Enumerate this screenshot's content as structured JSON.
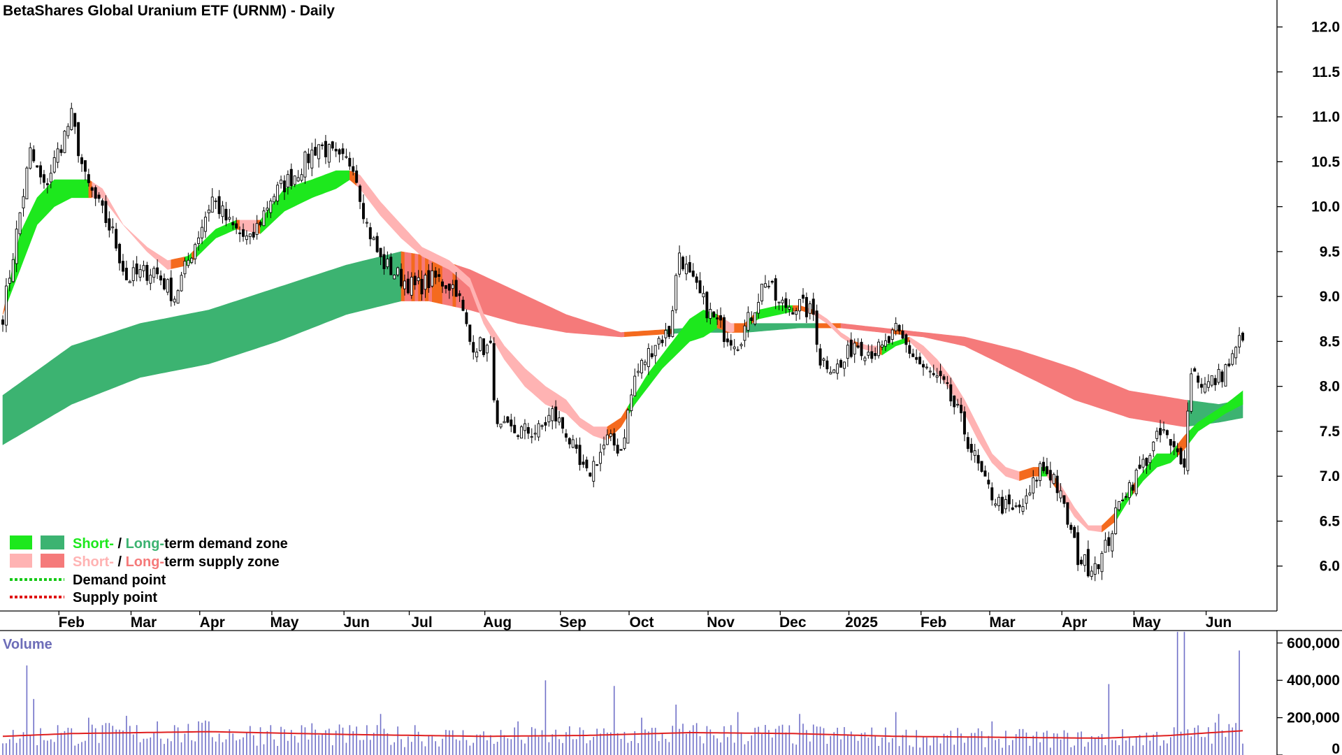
{
  "colors": {
    "short_demand": "#1de81d",
    "long_demand": "#3cb371",
    "short_supply": "#ffb3b3",
    "long_supply": "#f57a7a",
    "orange_zone": "#f46a1e",
    "demand_point": "#16c916",
    "supply_point": "#e01010",
    "volume_bar": "#7070c8",
    "volume_ma": "#e02020",
    "candle_up": "#ffffff",
    "candle_down": "#000000"
  },
  "chart_data": [
    {
      "type": "candlestick",
      "title": "BetaShares Global Uranium ETF (URNM) - Daily",
      "ylim": [
        5.5,
        12.3
      ],
      "y_ticks": [
        "6.0",
        "6.5",
        "7.0",
        "7.5",
        "8.0",
        "8.5",
        "9.0",
        "9.5",
        "10.0",
        "10.5",
        "11.0",
        "11.5",
        "12.0"
      ],
      "x_ticks": [
        "Feb",
        "Mar",
        "Apr",
        "May",
        "Jun",
        "Jul",
        "Aug",
        "Sep",
        "Oct",
        "Nov",
        "Dec",
        "2025",
        "Feb",
        "Mar",
        "Apr",
        "May",
        "Jun"
      ],
      "x_tick_index": [
        20,
        41,
        61,
        82,
        103,
        122,
        144,
        166,
        186,
        209,
        230,
        250,
        271,
        291,
        312,
        333,
        354
      ],
      "num_days": 362,
      "price_path": [
        [
          0,
          8.8
        ],
        [
          8,
          10.6
        ],
        [
          12,
          10.2
        ],
        [
          20,
          11.0
        ],
        [
          24,
          10.3
        ],
        [
          32,
          9.7
        ],
        [
          36,
          9.2
        ],
        [
          44,
          9.3
        ],
        [
          50,
          9.0
        ],
        [
          56,
          9.6
        ],
        [
          61,
          10.1
        ],
        [
          66,
          9.8
        ],
        [
          72,
          9.6
        ],
        [
          78,
          10.1
        ],
        [
          86,
          10.4
        ],
        [
          92,
          10.7
        ],
        [
          98,
          10.5
        ],
        [
          102,
          10.5
        ],
        [
          106,
          9.8
        ],
        [
          110,
          9.4
        ],
        [
          116,
          9.2
        ],
        [
          120,
          9.1
        ],
        [
          126,
          9.2
        ],
        [
          132,
          9.1
        ],
        [
          136,
          8.5
        ],
        [
          142,
          8.4
        ],
        [
          144,
          7.5
        ],
        [
          150,
          7.5
        ],
        [
          156,
          7.5
        ],
        [
          160,
          7.7
        ],
        [
          164,
          7.5
        ],
        [
          168,
          7.1
        ],
        [
          170,
          7.0
        ],
        [
          176,
          7.4
        ],
        [
          180,
          7.3
        ],
        [
          184,
          8.1
        ],
        [
          190,
          8.5
        ],
        [
          194,
          8.6
        ],
        [
          197,
          9.5
        ],
        [
          200,
          9.2
        ],
        [
          206,
          8.8
        ],
        [
          210,
          8.6
        ],
        [
          214,
          8.5
        ],
        [
          218,
          8.8
        ],
        [
          222,
          9.2
        ],
        [
          226,
          8.9
        ],
        [
          232,
          8.9
        ],
        [
          236,
          8.8
        ],
        [
          238,
          8.3
        ],
        [
          244,
          8.2
        ],
        [
          248,
          8.5
        ],
        [
          252,
          8.4
        ],
        [
          256,
          8.4
        ],
        [
          260,
          8.6
        ],
        [
          264,
          8.4
        ],
        [
          268,
          8.2
        ],
        [
          274,
          8.0
        ],
        [
          278,
          7.7
        ],
        [
          282,
          7.3
        ],
        [
          286,
          6.9
        ],
        [
          290,
          6.7
        ],
        [
          294,
          6.6
        ],
        [
          298,
          6.7
        ],
        [
          302,
          7.1
        ],
        [
          306,
          7.0
        ],
        [
          310,
          6.5
        ],
        [
          313,
          6.1
        ],
        [
          316,
          6.0
        ],
        [
          320,
          6.1
        ],
        [
          322,
          6.3
        ],
        [
          326,
          6.8
        ],
        [
          330,
          7.0
        ],
        [
          333,
          7.2
        ],
        [
          336,
          7.4
        ],
        [
          338,
          7.5
        ],
        [
          340,
          7.3
        ],
        [
          344,
          7.2
        ],
        [
          346,
          8.2
        ],
        [
          350,
          8.0
        ],
        [
          354,
          8.1
        ],
        [
          358,
          8.3
        ],
        [
          361,
          8.6
        ]
      ],
      "short_term_zone": [
        [
          0,
          8.8,
          8.8
        ],
        [
          5,
          9.3,
          9.7
        ],
        [
          10,
          9.8,
          10.1
        ],
        [
          15,
          10.0,
          10.3
        ],
        [
          20,
          10.1,
          10.3
        ],
        [
          25,
          10.1,
          10.3
        ],
        [
          29,
          10.1,
          10.2
        ],
        [
          35,
          9.8,
          9.8
        ],
        [
          42,
          9.5,
          9.55
        ],
        [
          48,
          9.3,
          9.4
        ],
        [
          54,
          9.35,
          9.45
        ],
        [
          62,
          9.65,
          9.75
        ],
        [
          68,
          9.75,
          9.85
        ],
        [
          75,
          9.7,
          9.85
        ],
        [
          82,
          9.95,
          10.2
        ],
        [
          90,
          10.1,
          10.3
        ],
        [
          97,
          10.2,
          10.4
        ],
        [
          101,
          10.3,
          10.4
        ],
        [
          104,
          10.2,
          10.35
        ],
        [
          110,
          9.9,
          10.05
        ],
        [
          116,
          9.65,
          9.8
        ],
        [
          122,
          9.45,
          9.55
        ],
        [
          130,
          9.3,
          9.4
        ],
        [
          136,
          9.1,
          9.2
        ],
        [
          140,
          8.7,
          8.8
        ],
        [
          146,
          8.3,
          8.45
        ],
        [
          152,
          8.0,
          8.2
        ],
        [
          158,
          7.8,
          8.0
        ],
        [
          164,
          7.7,
          7.85
        ],
        [
          168,
          7.55,
          7.65
        ],
        [
          172,
          7.45,
          7.55
        ],
        [
          176,
          7.4,
          7.55
        ],
        [
          180,
          7.55,
          7.65
        ],
        [
          184,
          7.8,
          7.9
        ],
        [
          188,
          8.0,
          8.15
        ],
        [
          192,
          8.2,
          8.35
        ],
        [
          196,
          8.35,
          8.55
        ],
        [
          200,
          8.5,
          8.75
        ],
        [
          204,
          8.55,
          8.85
        ],
        [
          208,
          8.65,
          8.8
        ],
        [
          212,
          8.6,
          8.7
        ],
        [
          216,
          8.65,
          8.7
        ],
        [
          220,
          8.75,
          8.85
        ],
        [
          226,
          8.8,
          8.9
        ],
        [
          232,
          8.85,
          8.9
        ],
        [
          236,
          8.8,
          8.85
        ],
        [
          240,
          8.7,
          8.75
        ],
        [
          244,
          8.55,
          8.6
        ],
        [
          248,
          8.45,
          8.5
        ],
        [
          252,
          8.4,
          8.45
        ],
        [
          256,
          8.35,
          8.45
        ],
        [
          260,
          8.45,
          8.5
        ],
        [
          264,
          8.5,
          8.55
        ],
        [
          268,
          8.35,
          8.45
        ],
        [
          272,
          8.15,
          8.3
        ],
        [
          276,
          7.95,
          8.1
        ],
        [
          280,
          7.7,
          7.85
        ],
        [
          284,
          7.4,
          7.55
        ],
        [
          288,
          7.15,
          7.25
        ],
        [
          292,
          7.0,
          7.1
        ],
        [
          296,
          6.95,
          7.05
        ],
        [
          300,
          7.0,
          7.1
        ],
        [
          304,
          7.0,
          7.1
        ],
        [
          308,
          6.8,
          6.9
        ],
        [
          312,
          6.55,
          6.65
        ],
        [
          316,
          6.4,
          6.45
        ],
        [
          320,
          6.38,
          6.45
        ],
        [
          324,
          6.5,
          6.6
        ],
        [
          328,
          6.75,
          6.85
        ],
        [
          332,
          6.95,
          7.05
        ],
        [
          336,
          7.1,
          7.25
        ],
        [
          340,
          7.15,
          7.25
        ],
        [
          344,
          7.3,
          7.45
        ],
        [
          348,
          7.5,
          7.6
        ],
        [
          352,
          7.6,
          7.7
        ],
        [
          356,
          7.7,
          7.8
        ],
        [
          361,
          7.8,
          7.95
        ]
      ],
      "long_term_zone": [
        [
          0,
          7.35,
          7.9
        ],
        [
          20,
          7.8,
          8.45
        ],
        [
          40,
          8.1,
          8.7
        ],
        [
          60,
          8.25,
          8.85
        ],
        [
          80,
          8.5,
          9.1
        ],
        [
          100,
          8.8,
          9.35
        ],
        [
          116,
          8.95,
          9.5
        ],
        [
          124,
          8.95,
          9.45
        ],
        [
          136,
          8.85,
          9.3
        ],
        [
          150,
          8.7,
          9.05
        ],
        [
          164,
          8.6,
          8.8
        ],
        [
          180,
          8.55,
          8.6
        ],
        [
          200,
          8.6,
          8.65
        ],
        [
          216,
          8.6,
          8.7
        ],
        [
          232,
          8.65,
          8.7
        ],
        [
          244,
          8.65,
          8.7
        ],
        [
          256,
          8.6,
          8.65
        ],
        [
          268,
          8.55,
          8.6
        ],
        [
          280,
          8.45,
          8.55
        ],
        [
          296,
          8.15,
          8.4
        ],
        [
          312,
          7.85,
          8.2
        ],
        [
          328,
          7.65,
          7.95
        ],
        [
          344,
          7.55,
          7.85
        ],
        [
          354,
          7.6,
          7.8
        ],
        [
          361,
          7.65,
          7.85
        ]
      ]
    },
    {
      "type": "bar",
      "title": "Volume",
      "ylim": [
        0,
        660000
      ],
      "y_ticks": [
        "0",
        "200,000",
        "400,000",
        "600,000"
      ],
      "volume_spikes": [
        [
          7,
          480000
        ],
        [
          9,
          300000
        ],
        [
          16,
          160000
        ],
        [
          25,
          200000
        ],
        [
          36,
          210000
        ],
        [
          45,
          180000
        ],
        [
          50,
          160000
        ],
        [
          60,
          180000
        ],
        [
          78,
          160000
        ],
        [
          90,
          170000
        ],
        [
          110,
          220000
        ],
        [
          120,
          160000
        ],
        [
          150,
          180000
        ],
        [
          158,
          400000
        ],
        [
          178,
          370000
        ],
        [
          186,
          200000
        ],
        [
          196,
          270000
        ],
        [
          214,
          230000
        ],
        [
          232,
          220000
        ],
        [
          260,
          230000
        ],
        [
          288,
          180000
        ],
        [
          322,
          380000
        ],
        [
          342,
          660000
        ],
        [
          344,
          660000
        ],
        [
          354,
          220000
        ],
        [
          360,
          560000
        ]
      ],
      "volume_ma_path": [
        [
          0,
          100000
        ],
        [
          20,
          115000
        ],
        [
          60,
          125000
        ],
        [
          100,
          110000
        ],
        [
          140,
          100000
        ],
        [
          170,
          105000
        ],
        [
          200,
          120000
        ],
        [
          230,
          115000
        ],
        [
          260,
          100000
        ],
        [
          290,
          95000
        ],
        [
          320,
          90000
        ],
        [
          340,
          105000
        ],
        [
          352,
          120000
        ],
        [
          361,
          130000
        ]
      ]
    }
  ],
  "legend": [
    {
      "parts": [
        "Short-",
        " / ",
        "Long-",
        "term demand zone"
      ]
    },
    {
      "parts": [
        "Short-",
        " / ",
        "Long-",
        "term supply zone"
      ]
    },
    {
      "label": "Demand point"
    },
    {
      "label": "Supply point"
    }
  ]
}
